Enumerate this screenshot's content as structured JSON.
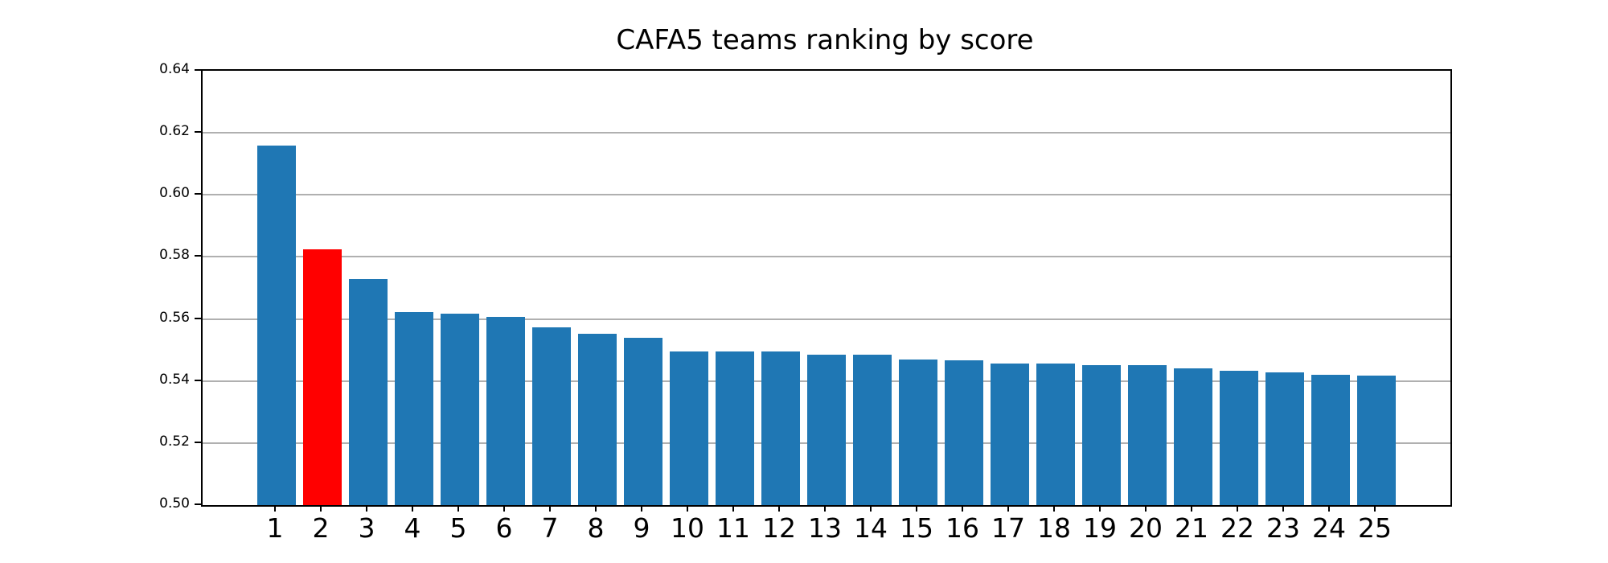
{
  "chart_data": {
    "type": "bar",
    "title": "CAFA5 teams ranking by score",
    "xlabel": "",
    "ylabel": "",
    "categories": [
      "1",
      "2",
      "3",
      "4",
      "5",
      "6",
      "7",
      "8",
      "9",
      "10",
      "11",
      "12",
      "13",
      "14",
      "15",
      "16",
      "17",
      "18",
      "19",
      "20",
      "21",
      "22",
      "23",
      "24",
      "25"
    ],
    "values": [
      0.616,
      0.5825,
      0.5728,
      0.5623,
      0.5617,
      0.5606,
      0.5572,
      0.5552,
      0.554,
      0.5496,
      0.5494,
      0.5494,
      0.5484,
      0.5484,
      0.5469,
      0.5466,
      0.5457,
      0.5457,
      0.545,
      0.545,
      0.5442,
      0.5432,
      0.5429,
      0.5421,
      0.5418
    ],
    "highlight_category": "2",
    "bar_color": "#1f77b4",
    "highlight_color": "#ff0000",
    "grid_color": "#b0b0b0",
    "spine_color": "#000000",
    "background_color": "#ffffff",
    "ylim": [
      0.5,
      0.64
    ],
    "yticks": [
      0.5,
      0.52,
      0.54,
      0.56,
      0.58,
      0.6,
      0.62,
      0.64
    ],
    "ytick_labels": [
      "0.50",
      "0.52",
      "0.54",
      "0.56",
      "0.58",
      "0.60",
      "0.62",
      "0.64"
    ],
    "grid": "horizontal",
    "legend_position": "none"
  }
}
